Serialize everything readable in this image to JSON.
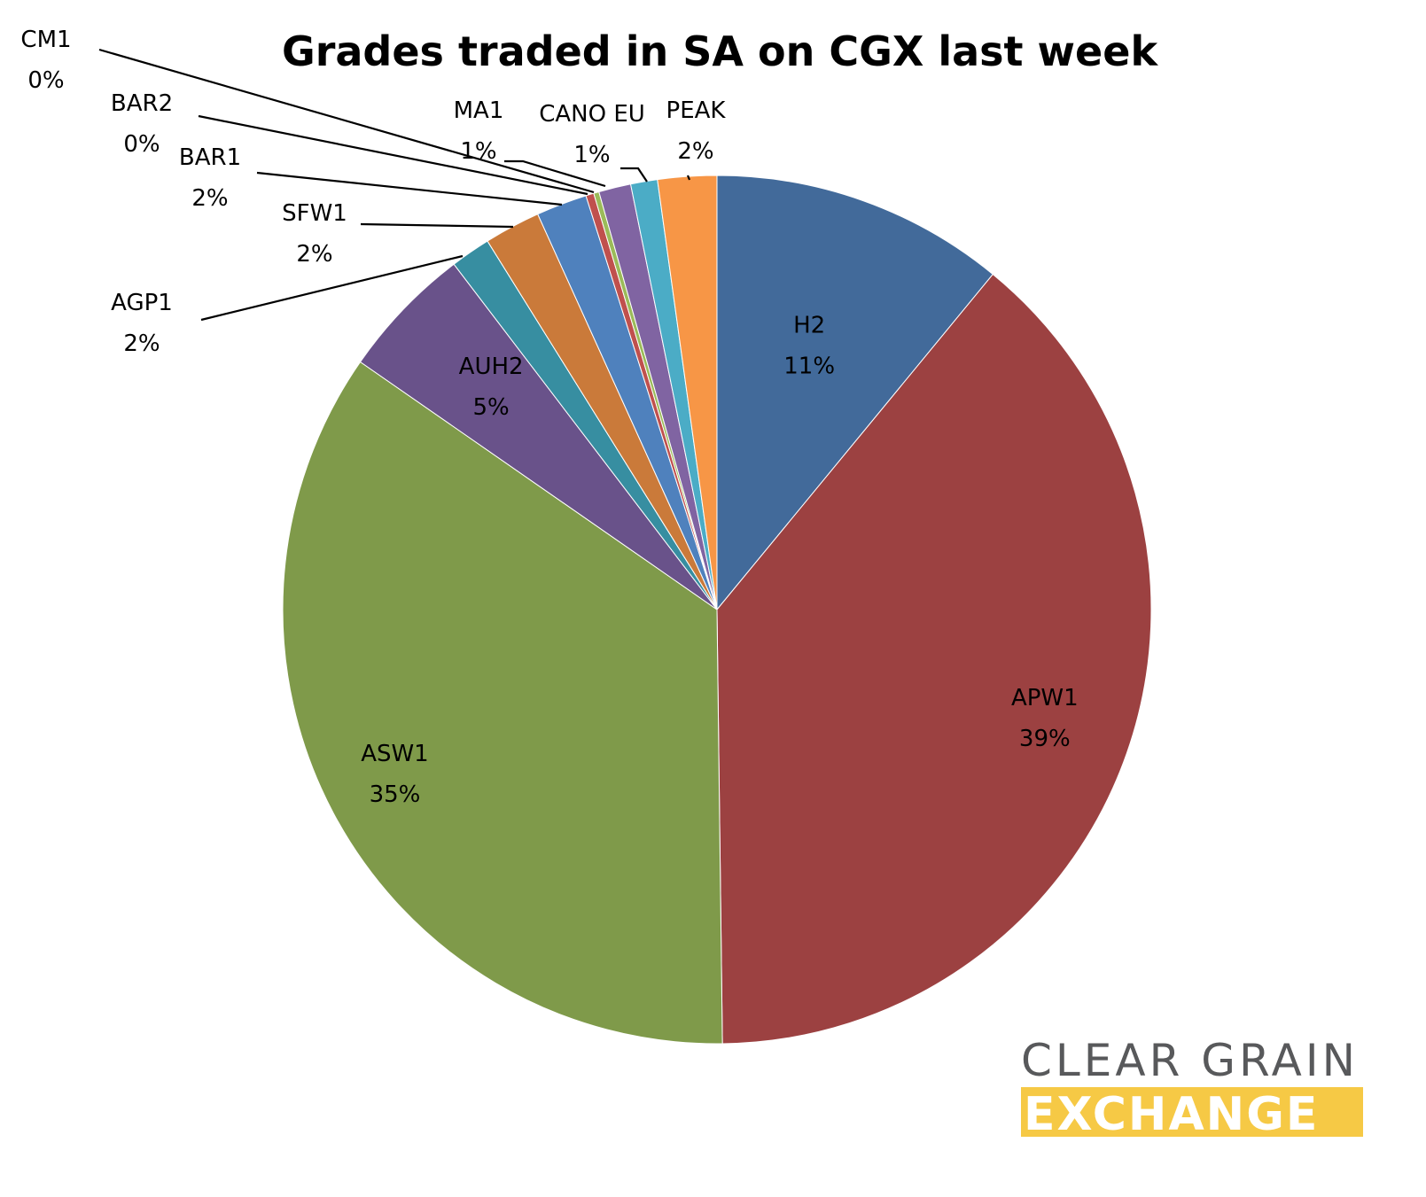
{
  "chart_data": {
    "type": "pie",
    "title": "Grades traded in SA on CGX last week",
    "start": "top",
    "direction": "clockwise",
    "slices": [
      {
        "name": "H2",
        "value": 11.0,
        "label_value": "11%",
        "color": "#426A9A"
      },
      {
        "name": "APW1",
        "value": 39.0,
        "label_value": "39%",
        "color": "#9C4141"
      },
      {
        "name": "ASW1",
        "value": 35.0,
        "label_value": "35%",
        "color": "#7F9A4A"
      },
      {
        "name": "AUH2",
        "value": 5.0,
        "label_value": "5%",
        "color": "#69528A"
      },
      {
        "name": "AGP1",
        "value": 1.5,
        "label_value": "2%",
        "color": "#378EA1"
      },
      {
        "name": "SFW1",
        "value": 2.1,
        "label_value": "2%",
        "color": "#CA7A3A"
      },
      {
        "name": "BAR1",
        "value": 1.9,
        "label_value": "2%",
        "color": "#4F81BD"
      },
      {
        "name": "BAR2",
        "value": 0.3,
        "label_value": "0%",
        "color": "#C0504D"
      },
      {
        "name": "CM1",
        "value": 0.2,
        "label_value": "0%",
        "color": "#9BBB59"
      },
      {
        "name": "MA1",
        "value": 1.2,
        "label_value": "1%",
        "color": "#8064A2"
      },
      {
        "name": "CANO EU",
        "value": 1.0,
        "label_value": "1%",
        "color": "#4BACC6"
      },
      {
        "name": "PEAK",
        "value": 2.2,
        "label_value": "2%",
        "color": "#F79646"
      }
    ]
  },
  "logo": {
    "line1": "CLEAR GRAIN",
    "line2": "EXCHANGE",
    "line1_color": "#58595B",
    "line2_bg": "#F6C945"
  }
}
